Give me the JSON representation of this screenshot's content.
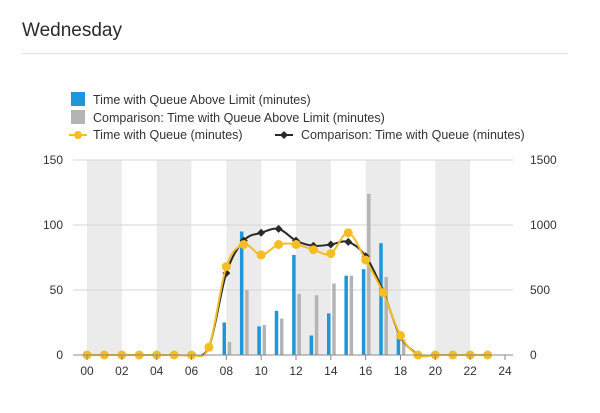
{
  "panel": {
    "title": "Wednesday"
  },
  "colors": {
    "bar_primary": "#1f96d8",
    "bar_comparison": "#b4b4b4",
    "line_primary": "#f4bc25",
    "line_comparison": "#2a2a2a",
    "shade_band": "#ebebeb",
    "text": "#333333",
    "axis": "#888888"
  },
  "chart_data": {
    "type": "bar+line",
    "title": "",
    "xlabel": "",
    "ylabel": "",
    "x_axis": {
      "range": [
        0,
        24
      ],
      "tick_values": [
        0,
        2,
        4,
        6,
        8,
        10,
        12,
        14,
        16,
        18,
        20,
        22,
        24
      ],
      "tick_labels": [
        "00",
        "02",
        "04",
        "06",
        "08",
        "10",
        "12",
        "14",
        "16",
        "18",
        "20",
        "22",
        "24"
      ],
      "shaded_bands": [
        [
          0,
          2
        ],
        [
          4,
          6
        ],
        [
          8,
          10
        ],
        [
          12,
          14
        ],
        [
          16,
          18
        ],
        [
          20,
          22
        ]
      ]
    },
    "y_left": {
      "range": [
        0,
        150
      ],
      "ticks": [
        0,
        50,
        100,
        150
      ]
    },
    "y_right": {
      "range": [
        0,
        1500
      ],
      "ticks": [
        0,
        500,
        1000,
        1500
      ]
    },
    "legend_position": "top-left",
    "series": [
      {
        "name": "Time with Queue Above Limit (minutes)",
        "kind": "bar",
        "axis": "left",
        "color": "#1f96d8",
        "x": [
          8,
          9,
          10,
          11,
          12,
          13,
          14,
          15,
          16,
          17,
          18
        ],
        "values": [
          25,
          95,
          22,
          34,
          77,
          15,
          32,
          61,
          66,
          86,
          18
        ]
      },
      {
        "name": "Comparison: Time with Queue Above Limit (minutes)",
        "kind": "bar",
        "axis": "left",
        "color": "#b4b4b4",
        "x": [
          8,
          9,
          10,
          11,
          12,
          13,
          14,
          15,
          16,
          17,
          18
        ],
        "values": [
          10,
          50,
          23,
          28,
          47,
          46,
          55,
          61,
          124,
          60,
          12
        ]
      },
      {
        "name": "Time with Queue (minutes)",
        "kind": "line",
        "axis": "right",
        "color": "#f4bc25",
        "marker": "circle",
        "x": [
          0,
          1,
          2,
          3,
          4,
          5,
          6,
          7,
          8,
          9,
          10,
          11,
          12,
          13,
          14,
          15,
          16,
          17,
          18,
          19,
          20,
          21,
          22,
          23
        ],
        "values": [
          0,
          0,
          0,
          0,
          0,
          0,
          0,
          60,
          680,
          850,
          770,
          850,
          850,
          810,
          780,
          940,
          730,
          480,
          150,
          0,
          0,
          0,
          0,
          0
        ]
      },
      {
        "name": "Comparison: Time with Queue (minutes)",
        "kind": "line",
        "axis": "right",
        "color": "#2a2a2a",
        "marker": "diamond",
        "x": [
          6,
          7,
          8,
          9,
          10,
          11,
          12,
          13,
          14,
          15,
          16,
          17,
          18,
          19
        ],
        "values": [
          0,
          60,
          630,
          880,
          940,
          970,
          880,
          840,
          850,
          870,
          760,
          490,
          140,
          0
        ]
      }
    ]
  }
}
